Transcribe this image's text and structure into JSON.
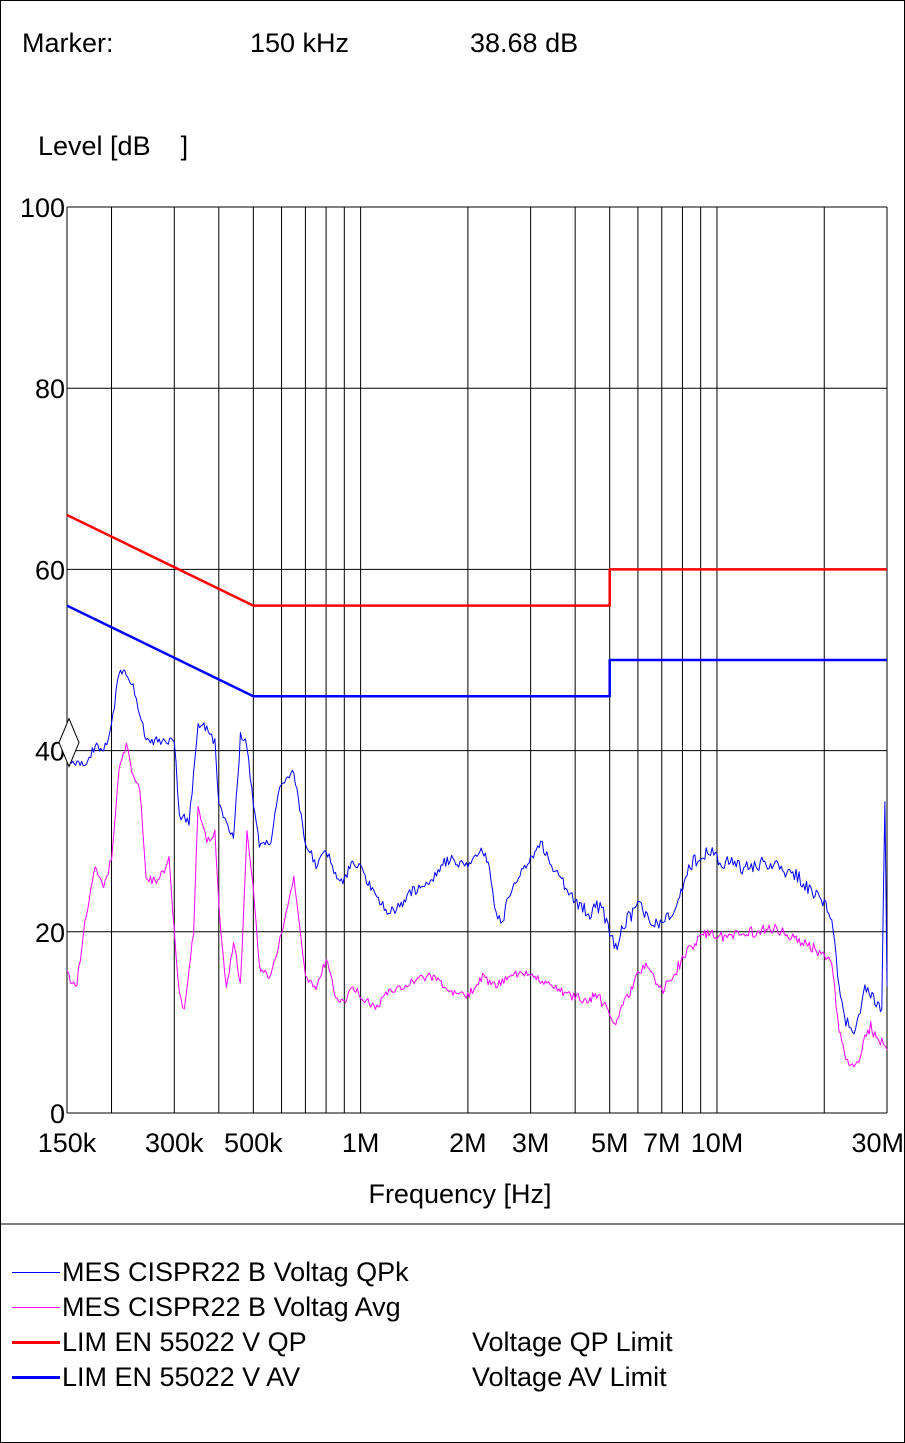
{
  "marker": {
    "label": "Marker:",
    "frequency": "150 kHz",
    "level": "38.68 dB"
  },
  "chart_data": {
    "type": "line",
    "title": "",
    "ylabel": "Level [dB    ]",
    "xlabel": "Frequency [Hz]",
    "xscale": "log",
    "xlim": [
      150000,
      30000000
    ],
    "ylim": [
      0,
      100
    ],
    "yticks": [
      0,
      20,
      40,
      60,
      80,
      100
    ],
    "ytick_labels": [
      "0",
      "20",
      "40",
      "60",
      "80",
      "100"
    ],
    "xtick_labels": [
      {
        "value": 150000,
        "label": "150k"
      },
      {
        "value": 300000,
        "label": "300k"
      },
      {
        "value": 500000,
        "label": "500k"
      },
      {
        "value": 1000000,
        "label": "1M"
      },
      {
        "value": 2000000,
        "label": "2M"
      },
      {
        "value": 3000000,
        "label": "3M"
      },
      {
        "value": 5000000,
        "label": "5M"
      },
      {
        "value": 7000000,
        "label": "7M"
      },
      {
        "value": 10000000,
        "label": "10M"
      },
      {
        "value": 30000000,
        "label": "30M"
      }
    ],
    "grid": true,
    "marker_point": {
      "x": 150000,
      "y": 38.68
    },
    "series": [
      {
        "name": "MES  CISPR22 B Voltag QPk",
        "color": "#0000ff",
        "style": "thin",
        "points": [
          [
            150000,
            39.5
          ],
          [
            160000,
            38.5
          ],
          [
            170000,
            38.3
          ],
          [
            180000,
            40.5
          ],
          [
            190000,
            40.2
          ],
          [
            200000,
            42.5
          ],
          [
            210000,
            49.0
          ],
          [
            220000,
            48.5
          ],
          [
            230000,
            47.0
          ],
          [
            240000,
            44.0
          ],
          [
            250000,
            41.0
          ],
          [
            280000,
            41.2
          ],
          [
            300000,
            41.0
          ],
          [
            310000,
            33.0
          ],
          [
            330000,
            32.0
          ],
          [
            350000,
            43.0
          ],
          [
            370000,
            42.5
          ],
          [
            390000,
            41.0
          ],
          [
            400000,
            34.0
          ],
          [
            420000,
            32.0
          ],
          [
            440000,
            30.0
          ],
          [
            460000,
            41.5
          ],
          [
            480000,
            40.5
          ],
          [
            500000,
            34.0
          ],
          [
            520000,
            29.5
          ],
          [
            560000,
            30.0
          ],
          [
            580000,
            34.0
          ],
          [
            600000,
            36.5
          ],
          [
            650000,
            37.5
          ],
          [
            700000,
            30.0
          ],
          [
            750000,
            27.5
          ],
          [
            800000,
            29.0
          ],
          [
            850000,
            26.5
          ],
          [
            900000,
            25.5
          ],
          [
            950000,
            28.0
          ],
          [
            1000000,
            27.0
          ],
          [
            1100000,
            24.0
          ],
          [
            1200000,
            22.0
          ],
          [
            1300000,
            23.0
          ],
          [
            1400000,
            24.5
          ],
          [
            1500000,
            25.0
          ],
          [
            1600000,
            26.0
          ],
          [
            1700000,
            27.5
          ],
          [
            1800000,
            28.0
          ],
          [
            1900000,
            27.5
          ],
          [
            2000000,
            27.0
          ],
          [
            2100000,
            28.5
          ],
          [
            2200000,
            29.0
          ],
          [
            2300000,
            27.0
          ],
          [
            2400000,
            22.0
          ],
          [
            2500000,
            21.0
          ],
          [
            2600000,
            24.0
          ],
          [
            2800000,
            26.5
          ],
          [
            3000000,
            28.0
          ],
          [
            3200000,
            30.0
          ],
          [
            3400000,
            27.5
          ],
          [
            3600000,
            26.0
          ],
          [
            3800000,
            25.0
          ],
          [
            4000000,
            23.5
          ],
          [
            4200000,
            22.5
          ],
          [
            4400000,
            22.0
          ],
          [
            4600000,
            23.0
          ],
          [
            4800000,
            22.0
          ],
          [
            5000000,
            20.0
          ],
          [
            5200000,
            18.0
          ],
          [
            5400000,
            20.5
          ],
          [
            5600000,
            21.5
          ],
          [
            5800000,
            22.0
          ],
          [
            6000000,
            23.0
          ],
          [
            6200000,
            22.5
          ],
          [
            6500000,
            21.0
          ],
          [
            7000000,
            20.5
          ],
          [
            7500000,
            22.5
          ],
          [
            8000000,
            25.0
          ],
          [
            8500000,
            27.5
          ],
          [
            9000000,
            28.5
          ],
          [
            9500000,
            29.0
          ],
          [
            10000000,
            28.0
          ],
          [
            11000000,
            27.5
          ],
          [
            12000000,
            27.0
          ],
          [
            13000000,
            27.5
          ],
          [
            14000000,
            27.5
          ],
          [
            15000000,
            27.0
          ],
          [
            16000000,
            26.5
          ],
          [
            17000000,
            26.0
          ],
          [
            18000000,
            25.0
          ],
          [
            19000000,
            24.0
          ],
          [
            20000000,
            23.0
          ],
          [
            21000000,
            22.0
          ],
          [
            22000000,
            14.0
          ],
          [
            23000000,
            10.0
          ],
          [
            24000000,
            9.0
          ],
          [
            25000000,
            11.0
          ],
          [
            26000000,
            14.0
          ],
          [
            27000000,
            13.0
          ],
          [
            28000000,
            12.0
          ],
          [
            29000000,
            11.0
          ],
          [
            29600000,
            34.5
          ],
          [
            30000000,
            14.0
          ]
        ]
      },
      {
        "name": "MES  CISPR22 B Voltag Avg",
        "color": "#ff00ff",
        "style": "thin",
        "points": [
          [
            150000,
            16.0
          ],
          [
            155000,
            14.0
          ],
          [
            160000,
            14.5
          ],
          [
            170000,
            22.0
          ],
          [
            180000,
            27.0
          ],
          [
            190000,
            25.0
          ],
          [
            200000,
            28.0
          ],
          [
            210000,
            38.0
          ],
          [
            220000,
            40.5
          ],
          [
            230000,
            37.0
          ],
          [
            240000,
            36.0
          ],
          [
            250000,
            26.0
          ],
          [
            270000,
            25.5
          ],
          [
            290000,
            28.0
          ],
          [
            300000,
            20.0
          ],
          [
            310000,
            13.0
          ],
          [
            320000,
            11.5
          ],
          [
            340000,
            20.0
          ],
          [
            350000,
            34.0
          ],
          [
            370000,
            30.0
          ],
          [
            390000,
            31.0
          ],
          [
            400000,
            23.0
          ],
          [
            420000,
            13.5
          ],
          [
            440000,
            19.0
          ],
          [
            460000,
            14.0
          ],
          [
            480000,
            31.0
          ],
          [
            500000,
            25.0
          ],
          [
            520000,
            16.0
          ],
          [
            560000,
            15.0
          ],
          [
            600000,
            20.0
          ],
          [
            650000,
            26.0
          ],
          [
            700000,
            15.0
          ],
          [
            750000,
            13.5
          ],
          [
            800000,
            17.0
          ],
          [
            850000,
            13.0
          ],
          [
            900000,
            12.0
          ],
          [
            950000,
            14.0
          ],
          [
            1000000,
            13.0
          ],
          [
            1100000,
            11.5
          ],
          [
            1200000,
            13.5
          ],
          [
            1300000,
            14.0
          ],
          [
            1400000,
            14.5
          ],
          [
            1500000,
            15.0
          ],
          [
            1600000,
            15.0
          ],
          [
            1700000,
            14.0
          ],
          [
            1800000,
            13.5
          ],
          [
            1900000,
            13.0
          ],
          [
            2000000,
            13.0
          ],
          [
            2100000,
            14.0
          ],
          [
            2200000,
            15.0
          ],
          [
            2300000,
            14.5
          ],
          [
            2400000,
            14.0
          ],
          [
            2600000,
            15.0
          ],
          [
            2800000,
            15.5
          ],
          [
            3000000,
            15.5
          ],
          [
            3200000,
            14.5
          ],
          [
            3400000,
            14.0
          ],
          [
            3600000,
            13.5
          ],
          [
            3800000,
            13.0
          ],
          [
            4000000,
            13.0
          ],
          [
            4200000,
            12.5
          ],
          [
            4400000,
            12.5
          ],
          [
            4600000,
            13.0
          ],
          [
            4800000,
            12.0
          ],
          [
            5000000,
            11.0
          ],
          [
            5200000,
            10.0
          ],
          [
            5400000,
            12.0
          ],
          [
            5600000,
            13.0
          ],
          [
            5800000,
            14.0
          ],
          [
            6000000,
            15.0
          ],
          [
            6200000,
            16.5
          ],
          [
            6500000,
            15.5
          ],
          [
            7000000,
            13.5
          ],
          [
            7500000,
            15.0
          ],
          [
            8000000,
            17.0
          ],
          [
            8500000,
            18.5
          ],
          [
            9000000,
            19.5
          ],
          [
            9500000,
            20.0
          ],
          [
            10000000,
            19.5
          ],
          [
            11000000,
            19.5
          ],
          [
            12000000,
            20.0
          ],
          [
            13000000,
            20.0
          ],
          [
            14000000,
            20.5
          ],
          [
            15000000,
            20.0
          ],
          [
            16000000,
            19.5
          ],
          [
            17000000,
            19.0
          ],
          [
            18000000,
            18.5
          ],
          [
            19000000,
            18.0
          ],
          [
            20000000,
            17.5
          ],
          [
            21000000,
            17.0
          ],
          [
            22000000,
            9.0
          ],
          [
            23000000,
            6.0
          ],
          [
            24000000,
            5.0
          ],
          [
            25000000,
            6.0
          ],
          [
            26000000,
            8.0
          ],
          [
            27000000,
            9.5
          ],
          [
            28000000,
            8.5
          ],
          [
            29000000,
            8.0
          ],
          [
            30000000,
            7.0
          ]
        ]
      },
      {
        "name": "LIM  EN 55022 V QP",
        "description": "Voltage QP Limit",
        "color": "#ff0000",
        "style": "thick",
        "points": [
          [
            150000,
            66
          ],
          [
            500000,
            56
          ],
          [
            5000000,
            56
          ],
          [
            5000000,
            60
          ],
          [
            30000000,
            60
          ]
        ]
      },
      {
        "name": "LIM  EN 55022 V AV",
        "description": "Voltage AV Limit",
        "color": "#0000ff",
        "style": "thick",
        "points": [
          [
            150000,
            56
          ],
          [
            500000,
            46
          ],
          [
            5000000,
            46
          ],
          [
            5000000,
            50
          ],
          [
            30000000,
            50
          ]
        ]
      }
    ]
  }
}
